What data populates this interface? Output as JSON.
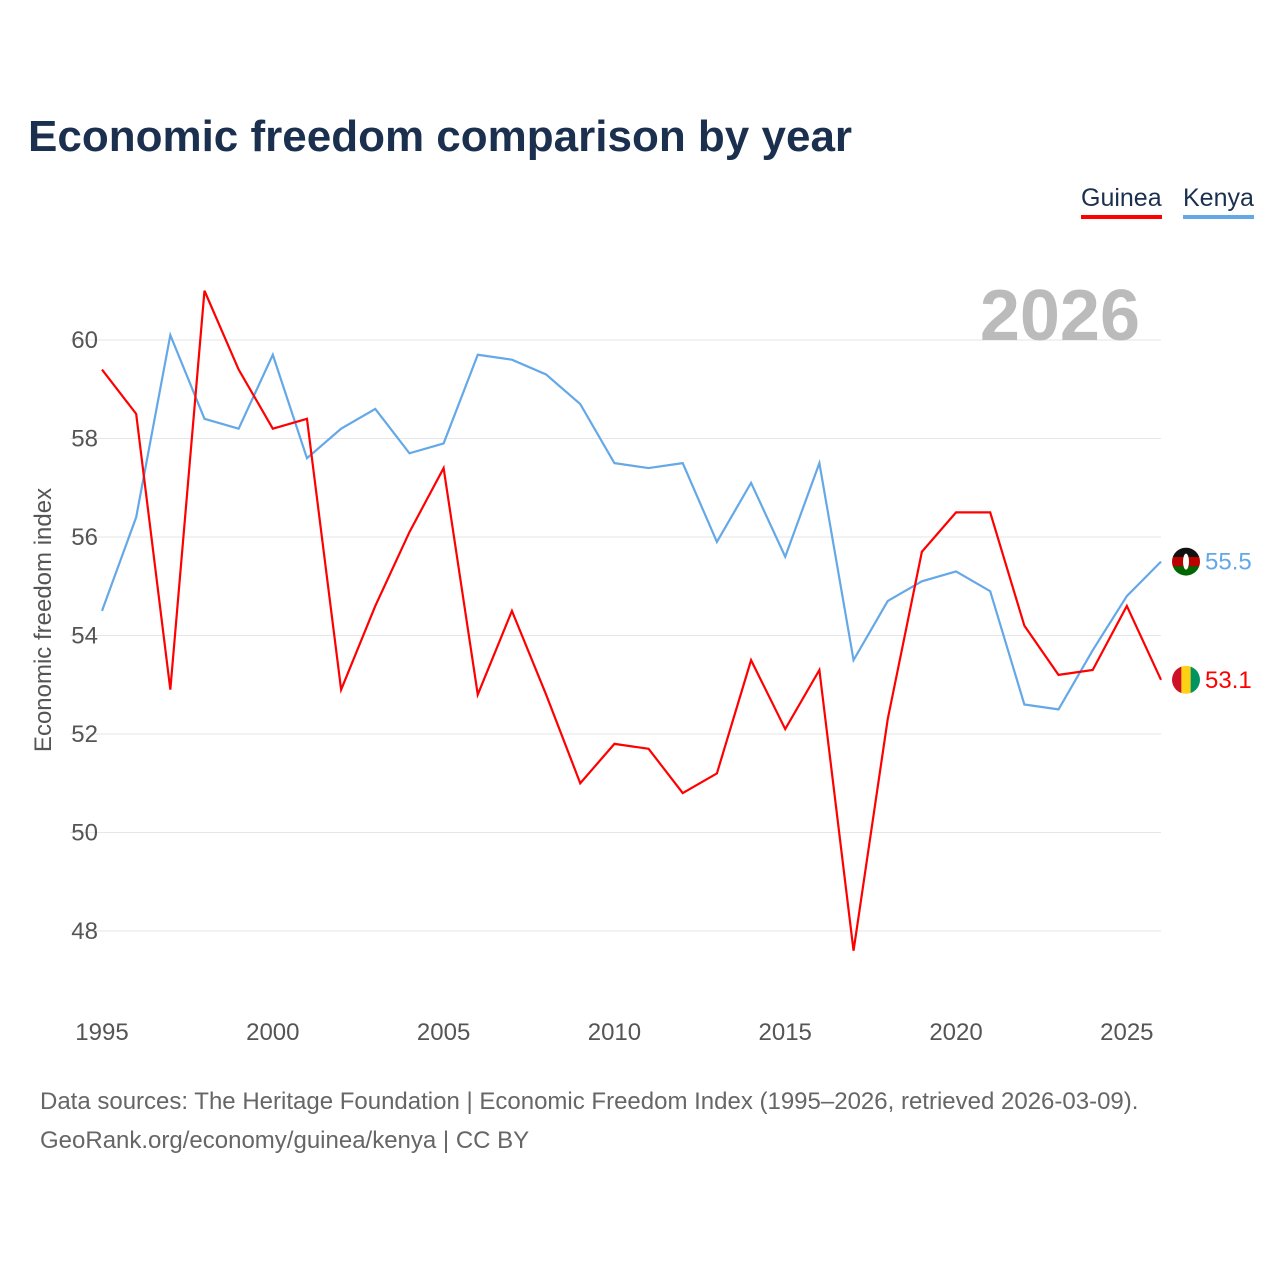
{
  "title": "Economic freedom comparison by year",
  "legend": [
    {
      "label": "Guinea",
      "color": "#ff0000"
    },
    {
      "label": "Kenya",
      "color": "#64a8e8"
    }
  ],
  "year_watermark": "2026",
  "footer": {
    "line1": "Data sources: The Heritage Foundation | Economic Freedom Index (1995–2026, retrieved 2026-03-09).",
    "line2": "GeoRank.org/economy/guinea/kenya | CC BY"
  },
  "chart_data": {
    "type": "line",
    "title": "Economic freedom comparison by year",
    "xlabel": "",
    "ylabel": "Economic freedom index",
    "x": [
      1995,
      1996,
      1997,
      1998,
      1999,
      2000,
      2001,
      2002,
      2003,
      2004,
      2005,
      2006,
      2007,
      2008,
      2009,
      2010,
      2011,
      2012,
      2013,
      2014,
      2015,
      2016,
      2017,
      2018,
      2019,
      2020,
      2021,
      2022,
      2023,
      2024,
      2025,
      2026
    ],
    "xticks": [
      "1995",
      "2000",
      "2005",
      "2010",
      "2015",
      "2020",
      "2025"
    ],
    "yticks": [
      "48",
      "50",
      "52",
      "54",
      "56",
      "58",
      "60"
    ],
    "ylim": [
      46.7,
      61.5
    ],
    "xlim": [
      1995,
      2026
    ],
    "grid": true,
    "legend_position": "top-right",
    "series": [
      {
        "name": "Guinea",
        "color": "#ff0000",
        "end_label": "53.1",
        "values": [
          59.4,
          58.5,
          52.9,
          61.0,
          59.4,
          58.2,
          58.4,
          52.9,
          54.6,
          56.1,
          57.4,
          52.8,
          54.5,
          52.8,
          51.0,
          51.8,
          51.7,
          50.8,
          51.2,
          53.5,
          52.1,
          53.3,
          47.6,
          52.3,
          55.7,
          56.5,
          56.5,
          54.2,
          53.2,
          53.3,
          54.6,
          53.1
        ]
      },
      {
        "name": "Kenya",
        "color": "#64a8e8",
        "end_label": "55.5",
        "values": [
          54.5,
          56.4,
          60.1,
          58.4,
          58.2,
          59.7,
          57.6,
          58.2,
          58.6,
          57.7,
          57.9,
          59.7,
          59.6,
          59.3,
          58.7,
          57.5,
          57.4,
          57.5,
          55.9,
          57.1,
          55.6,
          57.5,
          53.5,
          54.7,
          55.1,
          55.3,
          54.9,
          52.6,
          52.5,
          53.7,
          54.8,
          55.5
        ]
      }
    ]
  }
}
